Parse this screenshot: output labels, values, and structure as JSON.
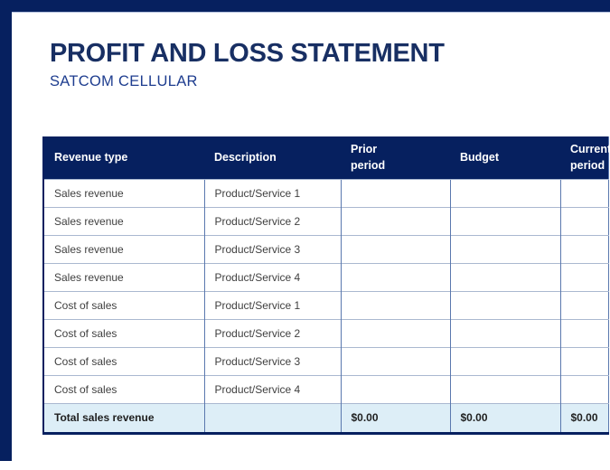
{
  "page": {
    "title": "PROFIT AND LOSS STATEMENT",
    "subtitle": "SATCOM CELLULAR"
  },
  "colors": {
    "frame_navy": "#06205f",
    "title_navy": "#182f63",
    "subtitle_blue": "#1e3d8f",
    "header_bg": "#06205f",
    "header_text": "#ffffff",
    "vertical_border": "#5a78ae",
    "horizontal_border": "#aab8d0",
    "total_row_bg": "#ddeef7",
    "body_text": "#404040"
  },
  "table": {
    "headers": [
      "Revenue type",
      "Description",
      "Prior\nperiod",
      "Budget",
      "Current\nperiod"
    ],
    "rows": [
      {
        "revenue_type": "Sales revenue",
        "description": "Product/Service 1",
        "prior": "",
        "budget": "",
        "current": ""
      },
      {
        "revenue_type": "Sales revenue",
        "description": "Product/Service 2",
        "prior": "",
        "budget": "",
        "current": ""
      },
      {
        "revenue_type": "Sales revenue",
        "description": "Product/Service 3",
        "prior": "",
        "budget": "",
        "current": ""
      },
      {
        "revenue_type": "Sales revenue",
        "description": "Product/Service 4",
        "prior": "",
        "budget": "",
        "current": ""
      },
      {
        "revenue_type": "Cost of sales",
        "description": "Product/Service 1",
        "prior": "",
        "budget": "",
        "current": ""
      },
      {
        "revenue_type": "Cost of sales",
        "description": "Product/Service 2",
        "prior": "",
        "budget": "",
        "current": ""
      },
      {
        "revenue_type": "Cost of sales",
        "description": "Product/Service 3",
        "prior": "",
        "budget": "",
        "current": ""
      },
      {
        "revenue_type": "Cost of sales",
        "description": "Product/Service 4",
        "prior": "",
        "budget": "",
        "current": ""
      }
    ],
    "total_row": {
      "label": "Total sales revenue",
      "description": "",
      "prior": "$0.00",
      "budget": "$0.00",
      "current": "$0.00"
    }
  }
}
